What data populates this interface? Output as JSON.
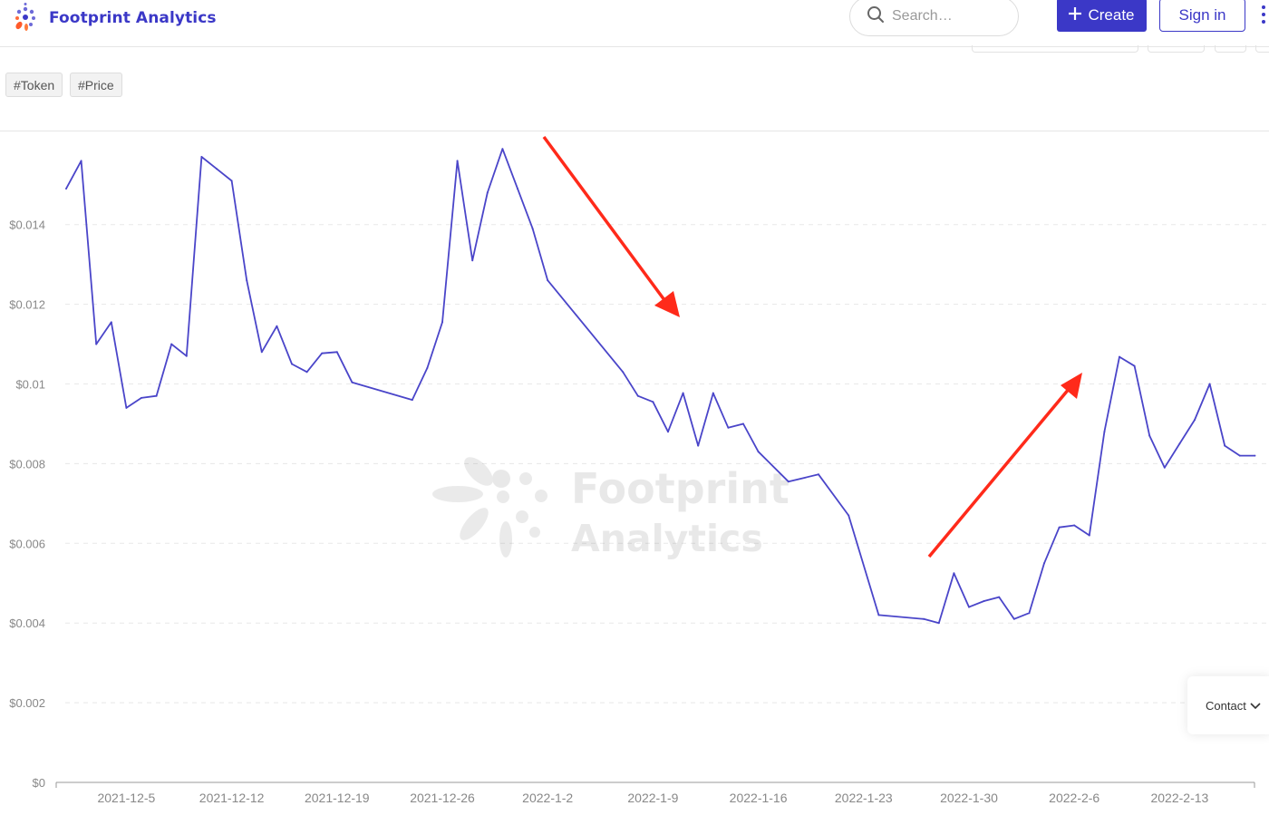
{
  "header": {
    "brand_name": "Footprint Analytics",
    "search_placeholder": "Search…",
    "create_label": "Create",
    "signin_label": "Sign in",
    "icons": {
      "search": "search-icon",
      "create": "plus-icon",
      "menu": "kebab-menu-icon",
      "logo": "footprint-logo-icon"
    }
  },
  "tags": [
    "#Token",
    "#Price"
  ],
  "watermark": {
    "line1": "Footprint",
    "line2": "Analytics"
  },
  "contact": {
    "label": "Contact"
  },
  "colors": {
    "brand": "#3b38c7",
    "line": "#4a45c9",
    "arrow": "#ff2a1a",
    "axis": "#888888",
    "grid": "#e8e8e8"
  },
  "chart_data": {
    "type": "line",
    "title": "",
    "xlabel": "",
    "ylabel": "",
    "ylim": [
      0,
      0.016
    ],
    "y_ticks": [
      0,
      0.002,
      0.004,
      0.006,
      0.008,
      0.01,
      0.012,
      0.014
    ],
    "y_tick_labels": [
      "$0",
      "$0.002",
      "$0.004",
      "$0.006",
      "$0.008",
      "$0.01",
      "$0.012",
      "$0.014"
    ],
    "x_tick_labels": [
      "2021-12-5",
      "2021-12-12",
      "2021-12-19",
      "2021-12-26",
      "2022-1-2",
      "2022-1-9",
      "2022-1-16",
      "2022-1-23",
      "2022-1-30",
      "2022-2-6",
      "2022-2-13"
    ],
    "grid": "horizontal dashed",
    "legend": "none",
    "annotations": [
      "red arrow pointing down-right (decline)",
      "red arrow pointing up-right (recovery)"
    ],
    "series": [
      {
        "x": [
          "2021-12-1",
          "2021-12-2",
          "2021-12-3",
          "2021-12-4",
          "2021-12-5",
          "2021-12-6",
          "2021-12-7",
          "2021-12-8",
          "2021-12-9",
          "2021-12-10",
          "2021-12-11",
          "2021-12-12",
          "2021-12-13",
          "2021-12-14",
          "2021-12-15",
          "2021-12-16",
          "2021-12-17",
          "2021-12-18",
          "2021-12-19",
          "2021-12-20",
          "2021-12-24",
          "2021-12-25",
          "2021-12-26",
          "2021-12-27",
          "2021-12-28",
          "2021-12-29",
          "2021-12-30",
          "2021-12-31",
          "2022-1-1",
          "2022-1-2",
          "2022-1-7",
          "2022-1-8",
          "2022-1-9",
          "2022-1-10",
          "2022-1-11",
          "2022-1-12",
          "2022-1-13",
          "2022-1-14",
          "2022-1-15",
          "2022-1-16",
          "2022-1-18",
          "2022-1-20",
          "2022-1-22",
          "2022-1-24",
          "2022-1-27",
          "2022-1-28",
          "2022-1-29",
          "2022-1-30",
          "2022-1-31",
          "2022-2-1",
          "2022-2-2",
          "2022-2-3",
          "2022-2-4",
          "2022-2-5",
          "2022-2-6",
          "2022-2-7",
          "2022-2-8",
          "2022-2-9",
          "2022-2-10",
          "2022-2-11",
          "2022-2-12",
          "2022-2-13",
          "2022-2-14",
          "2022-2-15",
          "2022-2-16",
          "2022-2-17",
          "2022-2-18"
        ],
        "values": [
          0.0149,
          0.0156,
          0.011,
          0.01155,
          0.0094,
          0.00965,
          0.0097,
          0.011,
          0.0107,
          0.0157,
          0.0154,
          0.0151,
          0.0126,
          0.0108,
          0.01145,
          0.0105,
          0.0103,
          0.01077,
          0.0108,
          0.01004,
          0.0096,
          0.0104,
          0.01155,
          0.0156,
          0.0131,
          0.0148,
          0.0159,
          0.0149,
          0.0139,
          0.0126,
          0.0103,
          0.0097,
          0.00955,
          0.0088,
          0.00977,
          0.00845,
          0.00977,
          0.0089,
          0.009,
          0.0083,
          0.00755,
          0.00773,
          0.0067,
          0.0042,
          0.0041,
          0.004,
          0.00525,
          0.0044,
          0.00455,
          0.00465,
          0.0041,
          0.00425,
          0.0055,
          0.0064,
          0.00645,
          0.0062,
          0.0088,
          0.01068,
          0.01045,
          0.0087,
          0.0079,
          0.0085,
          0.0091,
          0.01,
          0.00845,
          0.0082,
          0.0082
        ]
      }
    ]
  }
}
